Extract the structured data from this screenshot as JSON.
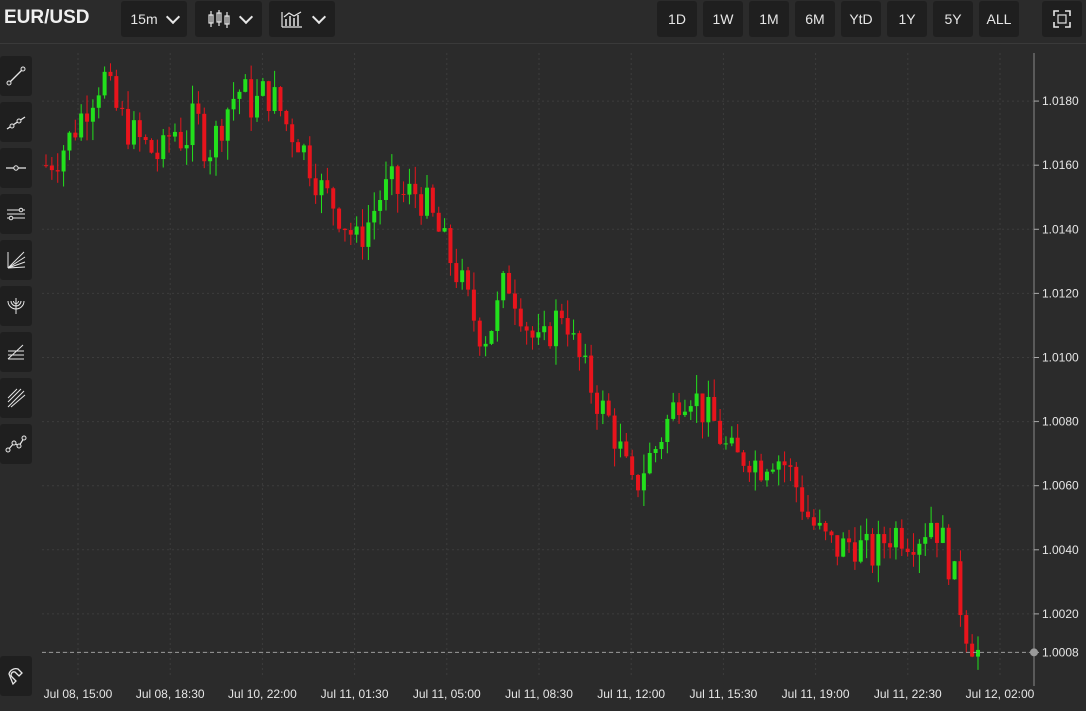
{
  "symbol": "EUR/USD",
  "interval": "15m",
  "ranges": [
    "1D",
    "1W",
    "1M",
    "6M",
    "YtD",
    "1Y",
    "5Y",
    "ALL"
  ],
  "toolbar_icons": [
    "candlestick-type-icon",
    "indicators-icon",
    "fullscreen-icon"
  ],
  "sidebar_tools": [
    "trend-line-icon",
    "ray-icon",
    "horizontal-line-icon",
    "parallel-channel-icon",
    "fibonacci-fan-icon",
    "fibonacci-arcs-icon",
    "fibonacci-retracement-icon",
    "pitchfork-icon",
    "polyline-icon",
    "magnet-icon"
  ],
  "colors": {
    "up": "#22e01c",
    "down": "#e8141c",
    "background": "#2b2b2b",
    "grid": "#3d3d3d"
  },
  "chart_data": {
    "type": "candlestick",
    "title": "EUR/USD",
    "ylim": [
      1.0,
      1.0195
    ],
    "y_ticks": [
      1.0008,
      1.002,
      1.004,
      1.006,
      1.008,
      1.01,
      1.012,
      1.014,
      1.016,
      1.018
    ],
    "y_tick_labels": [
      "1.0008",
      "1.0020",
      "1.0040",
      "1.0060",
      "1.0080",
      "1.0100",
      "1.0120",
      "1.0140",
      "1.0160",
      "1.0180"
    ],
    "x_tick_labels": [
      "Jul 08, 15:00",
      "Jul 08, 18:30",
      "Jul 10, 22:00",
      "Jul 11, 01:30",
      "Jul 11, 05:00",
      "Jul 11, 08:30",
      "Jul 11, 12:00",
      "Jul 11, 15:30",
      "Jul 11, 19:00",
      "Jul 11, 22:30",
      "Jul 12, 02:00"
    ],
    "last_price": 1.0008,
    "grid": true,
    "close_path": [
      1.016,
      1.0163,
      1.0168,
      1.0175,
      1.0182,
      1.0188,
      1.0178,
      1.0172,
      1.0168,
      1.0165,
      1.0162,
      1.0172,
      1.0167,
      1.0176,
      1.0164,
      1.0171,
      1.018,
      1.0184,
      1.0178,
      1.0183,
      1.018,
      1.0172,
      1.0168,
      1.016,
      1.0152,
      1.0148,
      1.0142,
      1.0136,
      1.0142,
      1.015,
      1.0154,
      1.015,
      1.0152,
      1.0148,
      1.014,
      1.0132,
      1.0124,
      1.0114,
      1.0106,
      1.0112,
      1.0125,
      1.0118,
      1.0108,
      1.0102,
      1.011,
      1.0116,
      1.0102,
      1.0094,
      1.0086,
      1.008,
      1.007,
      1.0058,
      1.0066,
      1.0072,
      1.008,
      1.0088,
      1.009,
      1.0084,
      1.008,
      1.0072,
      1.0068,
      1.007,
      1.0066,
      1.007,
      1.0068,
      1.0062,
      1.0052,
      1.0046,
      1.0042,
      1.004,
      1.0043,
      1.004,
      1.0038,
      1.0044,
      1.0046,
      1.0044,
      1.0045,
      1.005,
      1.0042,
      1.003,
      1.0015,
      1.0008
    ]
  }
}
